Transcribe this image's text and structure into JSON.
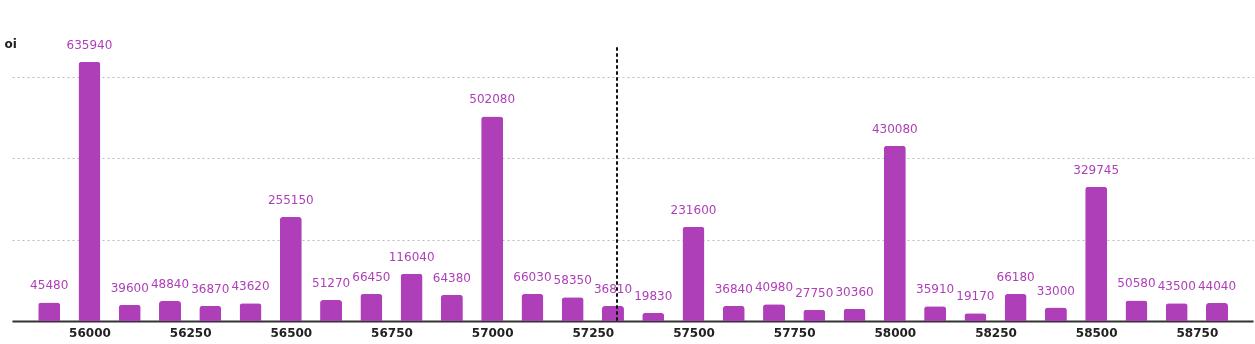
{
  "chart_data": {
    "type": "bar",
    "ylabel": "oi",
    "x": [
      55900,
      56000,
      56100,
      56200,
      56300,
      56400,
      56500,
      56600,
      56700,
      56800,
      56900,
      57000,
      57100,
      57200,
      57300,
      57400,
      57500,
      57600,
      57700,
      57800,
      57900,
      58000,
      58100,
      58200,
      58300,
      58400,
      58500,
      58600,
      58700,
      58800
    ],
    "values": [
      45480,
      635940,
      39600,
      48840,
      36870,
      43620,
      255150,
      51270,
      66450,
      116040,
      64380,
      502080,
      66030,
      58350,
      36810,
      19830,
      231600,
      36840,
      40980,
      27750,
      30360,
      430080,
      35910,
      19170,
      66180,
      33000,
      329745,
      50580,
      43500,
      44040
    ],
    "color": "#ae3fb8",
    "data_labels": true,
    "xlim": [
      55820,
      58877
    ],
    "xticks": [
      56000,
      56250,
      56500,
      56750,
      57000,
      57250,
      57500,
      57750,
      58000,
      58250,
      58500,
      58750
    ],
    "ylim": [
      0,
      670000
    ],
    "yticks": [
      0,
      {
        "value": 200000,
        "label": null
      },
      {
        "value": 400000,
        "label": null
      },
      {
        "value": 600000,
        "label": null
      }
    ],
    "tick_labels": "x",
    "grid": "y",
    "ref_lines": [
      {
        "axis": "x",
        "value": 57310,
        "line_style": "dotted",
        "color": "#111111"
      }
    ]
  }
}
